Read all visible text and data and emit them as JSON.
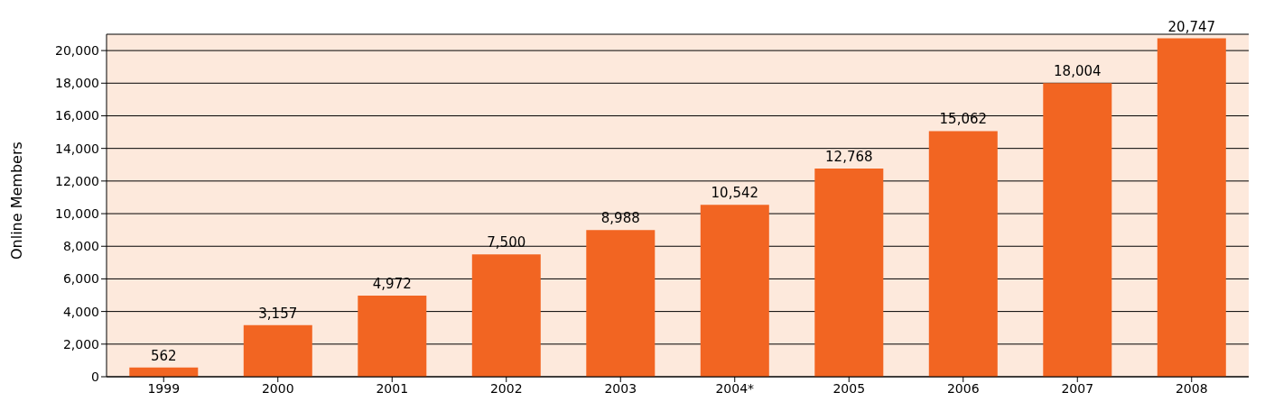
{
  "chart_data": {
    "type": "bar",
    "ylabel": "Online Members",
    "categories": [
      "1999",
      "2000",
      "2001",
      "2002",
      "2003",
      "2004*",
      "2005",
      "2006",
      "2007",
      "2008"
    ],
    "values": [
      562,
      3157,
      4972,
      7500,
      8988,
      10542,
      12768,
      15062,
      18004,
      20747
    ],
    "value_labels": [
      "562",
      "3,157",
      "4,972",
      "7,500",
      "8,988",
      "10,542",
      "12,768",
      "15,062",
      "18,004",
      "20,747"
    ],
    "color": "#f26522",
    "ylim": [
      0,
      21000
    ],
    "yticks": [
      0,
      {
        "value": 2000,
        "label": "2,000"
      },
      {
        "value": 4000,
        "label": "4,000"
      },
      {
        "value": 6000,
        "label": "6,000"
      },
      {
        "value": 8000,
        "label": "8,000"
      },
      {
        "value": 10000,
        "label": "10,000"
      },
      {
        "value": 12000,
        "label": "12,000"
      },
      {
        "value": 14000,
        "label": "14,000"
      },
      {
        "value": 16000,
        "label": "16,000"
      },
      {
        "value": 18000,
        "label": "18,000"
      },
      {
        "value": 20000,
        "label": "20,000"
      }
    ],
    "grid": "y"
  }
}
